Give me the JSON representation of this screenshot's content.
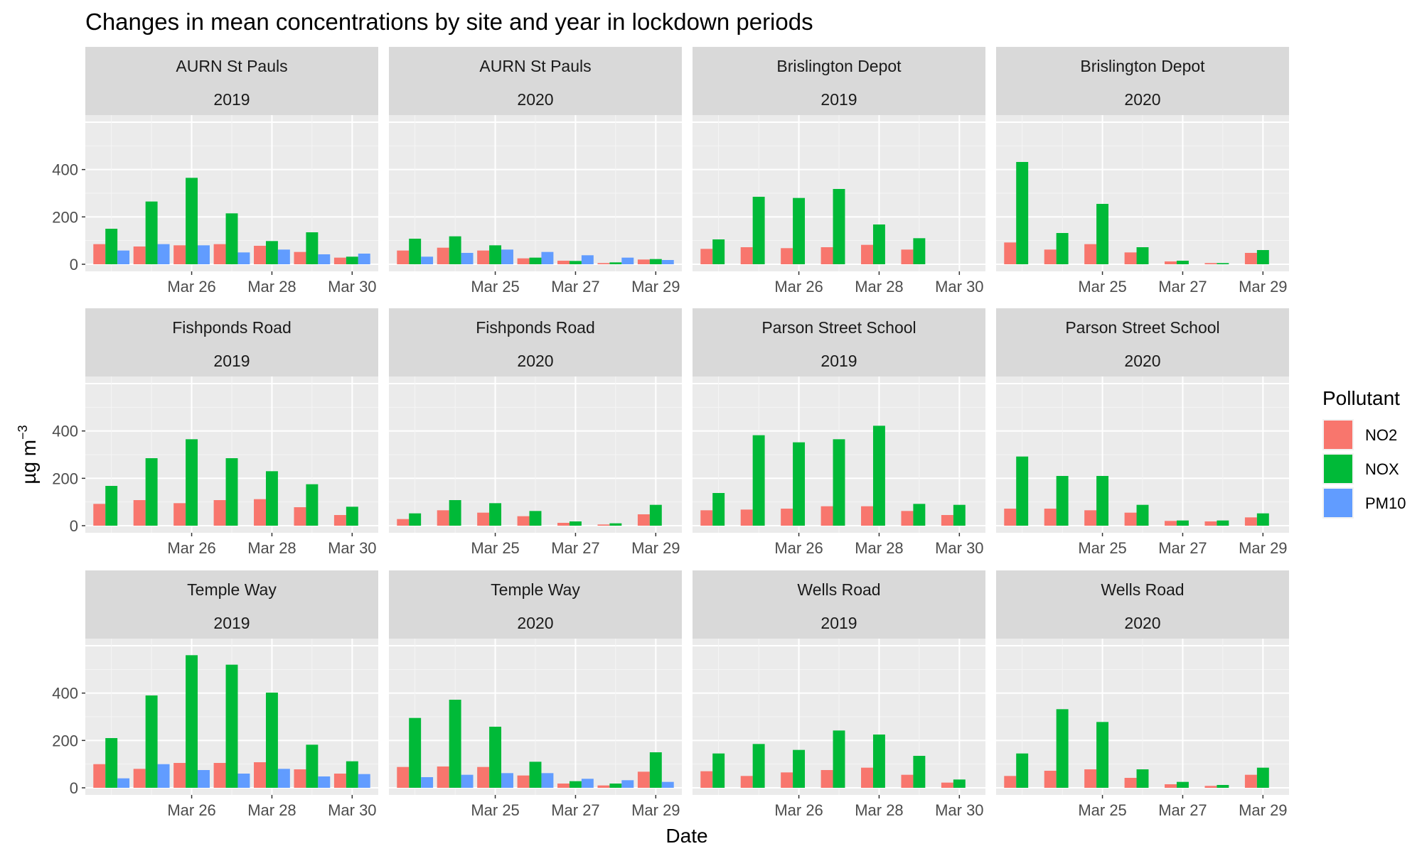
{
  "chart_data": {
    "type": "bar",
    "title": "Changes in mean concentrations by site and year in lockdown periods",
    "xlabel": "Date",
    "ylabel": "µg m",
    "ylabel_sup": "−3",
    "ylim": [
      0,
      600
    ],
    "yticks": [
      0,
      200,
      400
    ],
    "legend": {
      "title": "Pollutant",
      "position": "right",
      "items": [
        {
          "name": "NO2",
          "color": "#F8766D"
        },
        {
          "name": "NOX",
          "color": "#00BA38"
        },
        {
          "name": "PM10",
          "color": "#619CFF"
        }
      ]
    },
    "panels": [
      {
        "site": "AURN St Pauls",
        "year": "2019",
        "start_day": 24,
        "x_ticks": [
          "Mar 26",
          "Mar 28",
          "Mar 30"
        ],
        "days": [
          {
            "date": "Mar 24",
            "NO2": 85,
            "NOX": 150,
            "PM10": 58
          },
          {
            "date": "Mar 25",
            "NO2": 75,
            "NOX": 265,
            "PM10": 85
          },
          {
            "date": "Mar 26",
            "NO2": 80,
            "NOX": 365,
            "PM10": 80
          },
          {
            "date": "Mar 27",
            "NO2": 85,
            "NOX": 215,
            "PM10": 50
          },
          {
            "date": "Mar 28",
            "NO2": 78,
            "NOX": 98,
            "PM10": 62
          },
          {
            "date": "Mar 29",
            "NO2": 52,
            "NOX": 135,
            "PM10": 42
          },
          {
            "date": "Mar 30",
            "NO2": 28,
            "NOX": 32,
            "PM10": 45
          }
        ]
      },
      {
        "site": "AURN St Pauls",
        "year": "2020",
        "start_day": 23,
        "x_ticks": [
          "Mar 25",
          "Mar 27",
          "Mar 29"
        ],
        "days": [
          {
            "date": "Mar 23",
            "NO2": 58,
            "NOX": 108,
            "PM10": 32
          },
          {
            "date": "Mar 24",
            "NO2": 70,
            "NOX": 118,
            "PM10": 48
          },
          {
            "date": "Mar 25",
            "NO2": 58,
            "NOX": 80,
            "PM10": 62
          },
          {
            "date": "Mar 26",
            "NO2": 25,
            "NOX": 28,
            "PM10": 52
          },
          {
            "date": "Mar 27",
            "NO2": 15,
            "NOX": 14,
            "PM10": 38
          },
          {
            "date": "Mar 28",
            "NO2": 5,
            "NOX": 8,
            "PM10": 28
          },
          {
            "date": "Mar 29",
            "NO2": 20,
            "NOX": 22,
            "PM10": 18
          }
        ]
      },
      {
        "site": "Brislington Depot",
        "year": "2019",
        "start_day": 24,
        "x_ticks": [
          "Mar 26",
          "Mar 28",
          "Mar 30"
        ],
        "days": [
          {
            "date": "Mar 24",
            "NO2": 65,
            "NOX": 105,
            "PM10": null
          },
          {
            "date": "Mar 25",
            "NO2": 72,
            "NOX": 285,
            "PM10": null
          },
          {
            "date": "Mar 26",
            "NO2": 68,
            "NOX": 280,
            "PM10": null
          },
          {
            "date": "Mar 27",
            "NO2": 72,
            "NOX": 318,
            "PM10": null
          },
          {
            "date": "Mar 28",
            "NO2": 82,
            "NOX": 168,
            "PM10": null
          },
          {
            "date": "Mar 29",
            "NO2": 62,
            "NOX": 110,
            "PM10": null
          }
        ]
      },
      {
        "site": "Brislington Depot",
        "year": "2020",
        "start_day": 23,
        "x_ticks": [
          "Mar 25",
          "Mar 27",
          "Mar 29"
        ],
        "days": [
          {
            "date": "Mar 23",
            "NO2": 92,
            "NOX": 432,
            "PM10": null
          },
          {
            "date": "Mar 24",
            "NO2": 62,
            "NOX": 132,
            "PM10": null
          },
          {
            "date": "Mar 25",
            "NO2": 85,
            "NOX": 255,
            "PM10": null
          },
          {
            "date": "Mar 26",
            "NO2": 50,
            "NOX": 72,
            "PM10": null
          },
          {
            "date": "Mar 27",
            "NO2": 12,
            "NOX": 15,
            "PM10": null
          },
          {
            "date": "Mar 28",
            "NO2": 5,
            "NOX": 5,
            "PM10": null
          },
          {
            "date": "Mar 29",
            "NO2": 48,
            "NOX": 60,
            "PM10": null
          }
        ]
      },
      {
        "site": "Fishponds Road",
        "year": "2019",
        "start_day": 24,
        "x_ticks": [
          "Mar 26",
          "Mar 28",
          "Mar 30"
        ],
        "days": [
          {
            "date": "Mar 24",
            "NO2": 92,
            "NOX": 168,
            "PM10": null
          },
          {
            "date": "Mar 25",
            "NO2": 108,
            "NOX": 285,
            "PM10": null
          },
          {
            "date": "Mar 26",
            "NO2": 95,
            "NOX": 365,
            "PM10": null
          },
          {
            "date": "Mar 27",
            "NO2": 108,
            "NOX": 285,
            "PM10": null
          },
          {
            "date": "Mar 28",
            "NO2": 112,
            "NOX": 230,
            "PM10": null
          },
          {
            "date": "Mar 29",
            "NO2": 78,
            "NOX": 175,
            "PM10": null
          },
          {
            "date": "Mar 30",
            "NO2": 45,
            "NOX": 80,
            "PM10": null
          }
        ]
      },
      {
        "site": "Fishponds Road",
        "year": "2020",
        "start_day": 23,
        "x_ticks": [
          "Mar 25",
          "Mar 27",
          "Mar 29"
        ],
        "days": [
          {
            "date": "Mar 23",
            "NO2": 28,
            "NOX": 52,
            "PM10": null
          },
          {
            "date": "Mar 24",
            "NO2": 65,
            "NOX": 108,
            "PM10": null
          },
          {
            "date": "Mar 25",
            "NO2": 55,
            "NOX": 95,
            "PM10": null
          },
          {
            "date": "Mar 26",
            "NO2": 40,
            "NOX": 62,
            "PM10": null
          },
          {
            "date": "Mar 27",
            "NO2": 12,
            "NOX": 18,
            "PM10": null
          },
          {
            "date": "Mar 28",
            "NO2": 5,
            "NOX": 10,
            "PM10": null
          },
          {
            "date": "Mar 29",
            "NO2": 48,
            "NOX": 88,
            "PM10": null
          }
        ]
      },
      {
        "site": "Parson Street School",
        "year": "2019",
        "start_day": 24,
        "x_ticks": [
          "Mar 26",
          "Mar 28",
          "Mar 30"
        ],
        "days": [
          {
            "date": "Mar 24",
            "NO2": 65,
            "NOX": 138,
            "PM10": null
          },
          {
            "date": "Mar 25",
            "NO2": 68,
            "NOX": 382,
            "PM10": null
          },
          {
            "date": "Mar 26",
            "NO2": 72,
            "NOX": 352,
            "PM10": null
          },
          {
            "date": "Mar 27",
            "NO2": 82,
            "NOX": 365,
            "PM10": null
          },
          {
            "date": "Mar 28",
            "NO2": 82,
            "NOX": 422,
            "PM10": null
          },
          {
            "date": "Mar 29",
            "NO2": 62,
            "NOX": 92,
            "PM10": null
          },
          {
            "date": "Mar 30",
            "NO2": 45,
            "NOX": 88,
            "PM10": null
          }
        ]
      },
      {
        "site": "Parson Street School",
        "year": "2020",
        "start_day": 23,
        "x_ticks": [
          "Mar 25",
          "Mar 27",
          "Mar 29"
        ],
        "days": [
          {
            "date": "Mar 23",
            "NO2": 72,
            "NOX": 292,
            "PM10": null
          },
          {
            "date": "Mar 24",
            "NO2": 72,
            "NOX": 210,
            "PM10": null
          },
          {
            "date": "Mar 25",
            "NO2": 65,
            "NOX": 210,
            "PM10": null
          },
          {
            "date": "Mar 26",
            "NO2": 55,
            "NOX": 88,
            "PM10": null
          },
          {
            "date": "Mar 27",
            "NO2": 20,
            "NOX": 22,
            "PM10": null
          },
          {
            "date": "Mar 28",
            "NO2": 18,
            "NOX": 22,
            "PM10": null
          },
          {
            "date": "Mar 29",
            "NO2": 35,
            "NOX": 52,
            "PM10": null
          }
        ]
      },
      {
        "site": "Temple Way",
        "year": "2019",
        "start_day": 24,
        "x_ticks": [
          "Mar 26",
          "Mar 28",
          "Mar 30"
        ],
        "days": [
          {
            "date": "Mar 24",
            "NO2": 100,
            "NOX": 210,
            "PM10": 40
          },
          {
            "date": "Mar 25",
            "NO2": 80,
            "NOX": 390,
            "PM10": 100
          },
          {
            "date": "Mar 26",
            "NO2": 105,
            "NOX": 560,
            "PM10": 75
          },
          {
            "date": "Mar 27",
            "NO2": 105,
            "NOX": 520,
            "PM10": 60
          },
          {
            "date": "Mar 28",
            "NO2": 108,
            "NOX": 402,
            "PM10": 80
          },
          {
            "date": "Mar 29",
            "NO2": 78,
            "NOX": 182,
            "PM10": 48
          },
          {
            "date": "Mar 30",
            "NO2": 60,
            "NOX": 112,
            "PM10": 58
          }
        ]
      },
      {
        "site": "Temple Way",
        "year": "2020",
        "start_day": 23,
        "x_ticks": [
          "Mar 25",
          "Mar 27",
          "Mar 29"
        ],
        "days": [
          {
            "date": "Mar 23",
            "NO2": 88,
            "NOX": 295,
            "PM10": 45
          },
          {
            "date": "Mar 24",
            "NO2": 90,
            "NOX": 372,
            "PM10": 55
          },
          {
            "date": "Mar 25",
            "NO2": 88,
            "NOX": 258,
            "PM10": 62
          },
          {
            "date": "Mar 26",
            "NO2": 52,
            "NOX": 110,
            "PM10": 62
          },
          {
            "date": "Mar 27",
            "NO2": 18,
            "NOX": 28,
            "PM10": 38
          },
          {
            "date": "Mar 28",
            "NO2": 10,
            "NOX": 18,
            "PM10": 32
          },
          {
            "date": "Mar 29",
            "NO2": 68,
            "NOX": 150,
            "PM10": 25
          }
        ]
      },
      {
        "site": "Wells Road",
        "year": "2019",
        "start_day": 24,
        "x_ticks": [
          "Mar 26",
          "Mar 28",
          "Mar 30"
        ],
        "days": [
          {
            "date": "Mar 24",
            "NO2": 70,
            "NOX": 145,
            "PM10": null
          },
          {
            "date": "Mar 25",
            "NO2": 50,
            "NOX": 185,
            "PM10": null
          },
          {
            "date": "Mar 26",
            "NO2": 65,
            "NOX": 160,
            "PM10": null
          },
          {
            "date": "Mar 27",
            "NO2": 75,
            "NOX": 242,
            "PM10": null
          },
          {
            "date": "Mar 28",
            "NO2": 85,
            "NOX": 225,
            "PM10": null
          },
          {
            "date": "Mar 29",
            "NO2": 55,
            "NOX": 135,
            "PM10": null
          },
          {
            "date": "Mar 30",
            "NO2": 22,
            "NOX": 35,
            "PM10": null
          }
        ]
      },
      {
        "site": "Wells Road",
        "year": "2020",
        "start_day": 23,
        "x_ticks": [
          "Mar 25",
          "Mar 27",
          "Mar 29"
        ],
        "days": [
          {
            "date": "Mar 23",
            "NO2": 50,
            "NOX": 145,
            "PM10": null
          },
          {
            "date": "Mar 24",
            "NO2": 72,
            "NOX": 332,
            "PM10": null
          },
          {
            "date": "Mar 25",
            "NO2": 78,
            "NOX": 278,
            "PM10": null
          },
          {
            "date": "Mar 26",
            "NO2": 42,
            "NOX": 78,
            "PM10": null
          },
          {
            "date": "Mar 27",
            "NO2": 15,
            "NOX": 25,
            "PM10": null
          },
          {
            "date": "Mar 28",
            "NO2": 8,
            "NOX": 12,
            "PM10": null
          },
          {
            "date": "Mar 29",
            "NO2": 55,
            "NOX": 85,
            "PM10": null
          }
        ]
      }
    ]
  }
}
